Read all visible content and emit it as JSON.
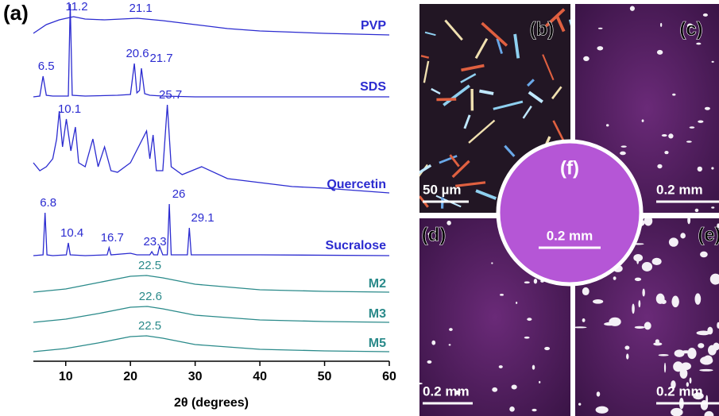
{
  "figure_label": "(a)",
  "chart_data": {
    "type": "line",
    "x_label": "2θ (degrees)",
    "xlim": [
      5,
      60
    ],
    "xticks": [
      10,
      20,
      30,
      40,
      50,
      60
    ],
    "series": [
      {
        "name": "PVP",
        "color": "#2b2bd0",
        "peaks": [
          11.2,
          21.1
        ],
        "x": [
          5,
          7,
          9,
          11.2,
          13,
          16,
          21.1,
          25,
          30,
          35,
          40,
          50,
          60
        ],
        "values": [
          3,
          14,
          20,
          24,
          21,
          20,
          22,
          19,
          14,
          9,
          6,
          3,
          1
        ]
      },
      {
        "name": "SDS",
        "color": "#2b2bd0",
        "peaks": [
          6.5,
          20.6,
          21.7
        ],
        "x": [
          5,
          6,
          6.5,
          7,
          8,
          10.4,
          10.7,
          11,
          13,
          18,
          20,
          20.6,
          21,
          21.4,
          21.7,
          22.2,
          23,
          25,
          30,
          60
        ],
        "values": [
          0,
          1,
          26,
          2,
          1,
          1,
          117,
          2,
          1,
          2,
          3,
          42,
          5,
          8,
          36,
          4,
          2,
          1,
          0,
          0
        ]
      },
      {
        "name": "Quercetin",
        "color": "#2b2bd0",
        "peaks": [
          10.1,
          25.7
        ],
        "x": [
          5,
          6,
          7,
          8,
          8.6,
          9,
          9.5,
          10.1,
          10.8,
          11.5,
          12,
          13,
          14.2,
          15,
          16,
          17,
          18,
          20,
          22.5,
          23,
          23.5,
          24,
          25,
          25.7,
          26.3,
          28,
          31,
          35,
          40,
          45,
          50,
          55,
          60
        ],
        "values": [
          40,
          30,
          35,
          45,
          70,
          105,
          60,
          95,
          55,
          85,
          40,
          35,
          70,
          35,
          60,
          30,
          28,
          40,
          80,
          45,
          75,
          30,
          30,
          113,
          35,
          25,
          35,
          20,
          15,
          10,
          8,
          5,
          2
        ]
      },
      {
        "name": "Sucralose",
        "color": "#2b2bd0",
        "peaks": [
          6.8,
          10.4,
          16.7,
          23.3,
          26.0,
          29.1
        ],
        "x": [
          5,
          6.5,
          6.8,
          7.1,
          8,
          10.1,
          10.4,
          10.7,
          13,
          16.4,
          16.7,
          17,
          20,
          21,
          23.0,
          23.3,
          23.6,
          24.2,
          24.5,
          25,
          25.7,
          26.0,
          26.3,
          28,
          28.8,
          29.1,
          29.4,
          31,
          40,
          60
        ],
        "values": [
          0,
          1,
          54,
          1,
          0,
          1,
          16,
          1,
          0,
          1,
          10,
          1,
          3,
          1,
          1,
          5,
          1,
          1,
          12,
          1,
          1,
          65,
          1,
          1,
          1,
          35,
          1,
          1,
          1,
          0
        ]
      },
      {
        "name": "M2",
        "color": "#2a8a8a",
        "peaks": [
          22.5
        ],
        "x": [
          5,
          10,
          15,
          20,
          22.5,
          25,
          30,
          40,
          50,
          60
        ],
        "values": [
          2,
          6,
          14,
          22,
          23,
          20,
          12,
          5,
          3,
          2
        ]
      },
      {
        "name": "M3",
        "color": "#2a8a8a",
        "peaks": [
          22.6
        ],
        "x": [
          5,
          10,
          15,
          20,
          22.6,
          25,
          30,
          40,
          50,
          60
        ],
        "values": [
          2,
          6,
          13,
          21,
          22,
          19,
          11,
          5,
          3,
          2
        ]
      },
      {
        "name": "M5",
        "color": "#2a8a8a",
        "peaks": [
          22.5
        ],
        "x": [
          5,
          10,
          15,
          20,
          22.5,
          25,
          30,
          40,
          50,
          60
        ],
        "values": [
          2,
          6,
          13,
          21,
          22,
          19,
          11,
          5,
          3,
          2
        ]
      }
    ]
  },
  "panels": [
    {
      "label": "(b)",
      "scale": "50 µm"
    },
    {
      "label": "(c)",
      "scale": "0.2 mm"
    },
    {
      "label": "(d)",
      "scale": "0.2 mm"
    },
    {
      "label": "(e)",
      "scale": "0.2 mm"
    },
    {
      "label": "(f)",
      "scale": "0.2 mm"
    }
  ]
}
